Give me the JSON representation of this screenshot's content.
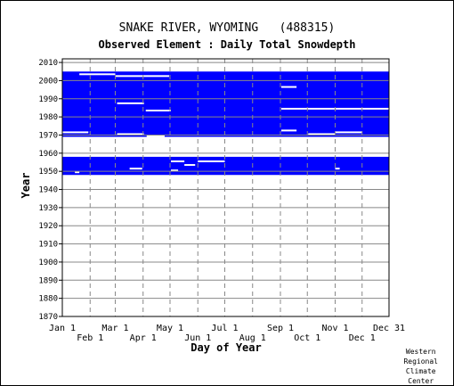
{
  "chart_data": {
    "type": "heatmap",
    "title": "SNAKE RIVER, WYOMING   (488315)",
    "subtitle": "Observed Element : Daily Total Snowdepth",
    "xlabel": "Day of Year",
    "ylabel": "Year",
    "x_ticks_top": [
      "Jan 1",
      "Mar 1",
      "May 1",
      "Jul 1",
      "Sep 1",
      "Nov 1",
      "Dec 31"
    ],
    "x_ticks_bottom": [
      "Feb 1",
      "Apr 1",
      "Jun 1",
      "Aug 1",
      "Oct 1",
      "Dec 1"
    ],
    "x_tick_days": [
      1,
      32,
      60,
      91,
      121,
      152,
      182,
      213,
      244,
      274,
      305,
      335,
      365
    ],
    "xlim": [
      1,
      365
    ],
    "y_ticks": [
      1870,
      1880,
      1890,
      1900,
      1910,
      1920,
      1930,
      1940,
      1950,
      1960,
      1970,
      1980,
      1990,
      2000,
      2010
    ],
    "ylim": [
      1870,
      2012
    ],
    "grid": true,
    "fill_color": "#0000ff",
    "data_periods": [
      {
        "label": "observed",
        "start_year": 1948,
        "end_year": 1957
      },
      {
        "label": "observed",
        "start_year": 1969,
        "end_year": 2004
      }
    ],
    "gaps": [
      {
        "year": 2003,
        "start_day": 20,
        "end_day": 60
      },
      {
        "year": 2002,
        "start_day": 60,
        "end_day": 120
      },
      {
        "year": 1996,
        "start_day": 245,
        "end_day": 262
      },
      {
        "year": 1987,
        "start_day": 62,
        "end_day": 92
      },
      {
        "year": 1983,
        "start_day": 94,
        "end_day": 122
      },
      {
        "year": 1984,
        "start_day": 245,
        "end_day": 365
      },
      {
        "year": 1971,
        "start_day": 1,
        "end_day": 30
      },
      {
        "year": 1972,
        "start_day": 245,
        "end_day": 262
      },
      {
        "year": 1970,
        "start_day": 62,
        "end_day": 92
      },
      {
        "year": 1969,
        "start_day": 95,
        "end_day": 115
      },
      {
        "year": 1970,
        "start_day": 275,
        "end_day": 305
      },
      {
        "year": 1971,
        "start_day": 305,
        "end_day": 335
      },
      {
        "year": 1955,
        "start_day": 122,
        "end_day": 137
      },
      {
        "year": 1955,
        "start_day": 152,
        "end_day": 182
      },
      {
        "year": 1953,
        "start_day": 137,
        "end_day": 149
      },
      {
        "year": 1951,
        "start_day": 76,
        "end_day": 90
      },
      {
        "year": 1950,
        "start_day": 122,
        "end_day": 130
      },
      {
        "year": 1949,
        "start_day": 15,
        "end_day": 20
      },
      {
        "year": 1951,
        "start_day": 305,
        "end_day": 310
      }
    ]
  },
  "credit": [
    "Western",
    "Regional",
    "Climate",
    "Center"
  ]
}
